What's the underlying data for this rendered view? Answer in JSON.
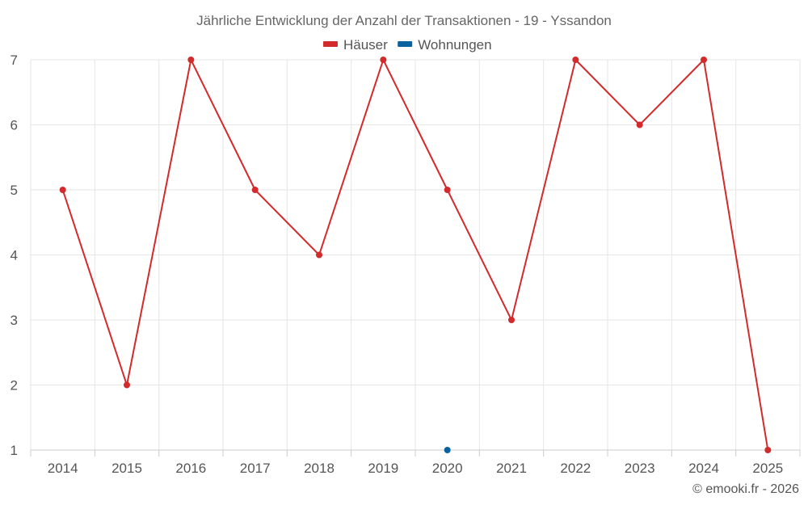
{
  "chart_data": {
    "type": "line",
    "title": "Jährliche Entwicklung der Anzahl der Transaktionen - 19 - Yssandon",
    "xlabel": "",
    "ylabel": "",
    "categories": [
      "2014",
      "2015",
      "2016",
      "2017",
      "2018",
      "2019",
      "2020",
      "2021",
      "2022",
      "2023",
      "2024",
      "2025"
    ],
    "ylim": [
      1,
      7
    ],
    "yticks": [
      1,
      2,
      3,
      4,
      5,
      6,
      7
    ],
    "grid": true,
    "legend_position": "top-center",
    "series": [
      {
        "name": "Häuser",
        "color": "#d32a2c",
        "values": [
          5,
          2,
          7,
          5,
          4,
          7,
          5,
          3,
          7,
          6,
          7,
          1
        ]
      },
      {
        "name": "Wohnungen",
        "color": "#0a629f",
        "values": [
          null,
          null,
          null,
          null,
          null,
          null,
          1,
          null,
          null,
          null,
          null,
          null
        ]
      }
    ]
  },
  "credit": "© emooki.fr - 2026"
}
